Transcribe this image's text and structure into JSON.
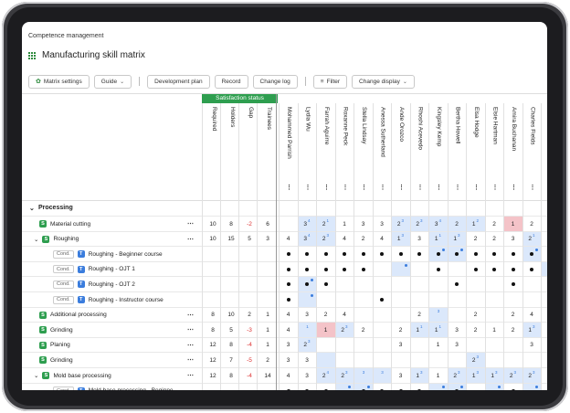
{
  "app": {
    "breadcrumb": "Competence management",
    "title": "Manufacturing skill matrix"
  },
  "toolbar": {
    "matrix_settings": "Matrix settings",
    "guide": "Guide",
    "development_plan": "Development plan",
    "record": "Record",
    "change_log": "Change log",
    "filter": "Filter",
    "change_display": "Change display"
  },
  "header": {
    "satisfaction_status": "Satisfaction status",
    "columns": [
      "Required",
      "Holders",
      "Gap",
      "Trainees"
    ],
    "people": [
      "Mohammed Parrish",
      "Lydia Wu",
      "Farrah Aguirre",
      "Roxanne Peck",
      "Stella Lindsay",
      "Anessa Sutherland",
      "Ande Orozco",
      "Rhoshi Acevedo",
      "Kingsley Kemp",
      "Bertha Howell",
      "Elsa Hodge",
      "Elsie Hartman",
      "Amira Buchanan",
      "Charles Fields",
      "Anabel Palmer"
    ]
  },
  "section": {
    "label": "Processing"
  },
  "rows": [
    {
      "kind": "S",
      "label": "Material cutting",
      "indent": 1,
      "stats": [
        "10",
        "8",
        "-2",
        "6"
      ]
    },
    {
      "kind": "S",
      "label": "Roughing",
      "indent": 1,
      "expand": true,
      "stats": [
        "10",
        "15",
        "5",
        "3"
      ]
    },
    {
      "kind": "T",
      "cond": "Cond.",
      "label": "Roughing - Beginner course",
      "indent": 2,
      "stats": [
        "",
        "",
        "",
        ""
      ]
    },
    {
      "kind": "T",
      "cond": "Cond.",
      "label": "Roughing - OJT 1",
      "indent": 2,
      "stats": [
        "",
        "",
        "",
        ""
      ]
    },
    {
      "kind": "T",
      "cond": "Cond.",
      "label": "Roughing - OJT 2",
      "indent": 2,
      "stats": [
        "",
        "",
        "",
        ""
      ]
    },
    {
      "kind": "T",
      "cond": "Cond.",
      "label": "Roughing - Instructor course",
      "indent": 2,
      "stats": [
        "",
        "",
        "",
        ""
      ]
    },
    {
      "kind": "S",
      "label": "Additional processing",
      "indent": 1,
      "stats": [
        "8",
        "10",
        "2",
        "1"
      ]
    },
    {
      "kind": "S",
      "label": "Grinding",
      "indent": 1,
      "stats": [
        "8",
        "5",
        "-3",
        "1"
      ]
    },
    {
      "kind": "S",
      "label": "Planing",
      "indent": 1,
      "stats": [
        "12",
        "8",
        "-4",
        "1"
      ]
    },
    {
      "kind": "S",
      "label": "Grinding",
      "indent": 1,
      "stats": [
        "12",
        "7",
        "-5",
        "2"
      ]
    },
    {
      "kind": "S",
      "label": "Mold base processing",
      "indent": 1,
      "expand": true,
      "stats": [
        "12",
        "8",
        "-4",
        "14"
      ]
    },
    {
      "kind": "T",
      "cond": "Cond.",
      "label": "Mold base processing - Beginne",
      "indent": 2,
      "stats": [
        "",
        "",
        "",
        ""
      ]
    },
    {
      "kind": "T",
      "cond": "Cond.",
      "label": "Mold base processing - OJT 1",
      "indent": 2,
      "stats": [
        "",
        "",
        "",
        ""
      ]
    }
  ],
  "cells": [
    [
      [
        "",
        ""
      ],
      [
        "3",
        "4",
        "hl"
      ],
      [
        "2",
        "1",
        "hl"
      ],
      [
        "1",
        ""
      ],
      [
        "3",
        ""
      ],
      [
        "3",
        ""
      ],
      [
        "2",
        "3",
        "hl"
      ],
      [
        "2",
        "3",
        "hl"
      ],
      [
        "3",
        "4",
        "hl"
      ],
      [
        "2",
        "",
        "hl"
      ],
      [
        "1",
        "2",
        "hl"
      ],
      [
        "2",
        ""
      ],
      [
        "1",
        "",
        "red"
      ],
      [
        "2",
        ""
      ],
      [
        "",
        ""
      ]
    ],
    [
      [
        "4",
        ""
      ],
      [
        "3",
        "4",
        "hl"
      ],
      [
        "2",
        "3",
        "hl"
      ],
      [
        "4",
        ""
      ],
      [
        "2",
        ""
      ],
      [
        "4",
        ""
      ],
      [
        "1",
        "3",
        "hl"
      ],
      [
        "3",
        ""
      ],
      [
        "1",
        "1",
        "hl"
      ],
      [
        "1",
        "3",
        "hl"
      ],
      [
        "2",
        ""
      ],
      [
        "2",
        ""
      ],
      [
        "3",
        ""
      ],
      [
        "2",
        "1",
        "hl"
      ],
      [
        "4",
        ""
      ]
    ],
    [
      [
        "●",
        ""
      ],
      [
        "●",
        ""
      ],
      [
        "●",
        ""
      ],
      [
        "●",
        ""
      ],
      [
        "●",
        ""
      ],
      [
        "●",
        ""
      ],
      [
        "●",
        ""
      ],
      [
        "●",
        ""
      ],
      [
        "●",
        "b",
        "hl"
      ],
      [
        "●",
        "b",
        "hl"
      ],
      [
        "●",
        ""
      ],
      [
        "●",
        ""
      ],
      [
        "●",
        ""
      ],
      [
        "●",
        "b",
        "hl"
      ],
      [
        "",
        ""
      ]
    ],
    [
      [
        "●",
        ""
      ],
      [
        "●",
        ""
      ],
      [
        "●",
        ""
      ],
      [
        "●",
        ""
      ],
      [
        "●",
        ""
      ],
      [
        "",
        ""
      ],
      [
        "",
        "b",
        "hl"
      ],
      [
        "",
        ""
      ],
      [
        "●",
        ""
      ],
      [
        "",
        ""
      ],
      [
        "●",
        ""
      ],
      [
        "●",
        ""
      ],
      [
        "●",
        ""
      ],
      [
        "●",
        ""
      ],
      [
        "",
        "b",
        "hl"
      ]
    ],
    [
      [
        "●",
        ""
      ],
      [
        "●",
        "b",
        "hl"
      ],
      [
        "●",
        ""
      ],
      [
        "",
        ""
      ],
      [
        "",
        ""
      ],
      [
        "",
        ""
      ],
      [
        "",
        ""
      ],
      [
        "",
        ""
      ],
      [
        "",
        ""
      ],
      [
        "●",
        ""
      ],
      [
        "",
        ""
      ],
      [
        "",
        ""
      ],
      [
        "●",
        ""
      ],
      [
        "",
        ""
      ],
      [
        "",
        ""
      ]
    ],
    [
      [
        "●",
        ""
      ],
      [
        "",
        "b",
        "hl"
      ],
      [
        "",
        ""
      ],
      [
        "",
        ""
      ],
      [
        "",
        ""
      ],
      [
        "●",
        ""
      ],
      [
        "",
        ""
      ],
      [
        "",
        ""
      ],
      [
        "",
        ""
      ],
      [
        "",
        ""
      ],
      [
        "",
        ""
      ],
      [
        "",
        ""
      ],
      [
        "",
        ""
      ],
      [
        "",
        ""
      ],
      [
        "●",
        ""
      ]
    ],
    [
      [
        "4",
        ""
      ],
      [
        "3",
        ""
      ],
      [
        "2",
        ""
      ],
      [
        "4",
        ""
      ],
      [
        "",
        ""
      ],
      [
        "",
        ""
      ],
      [
        "",
        ""
      ],
      [
        "2",
        ""
      ],
      [
        "",
        "3",
        "hl"
      ],
      [
        "",
        ""
      ],
      [
        "2",
        ""
      ],
      [
        "",
        ""
      ],
      [
        "2",
        ""
      ],
      [
        "4",
        ""
      ],
      [
        "",
        ""
      ]
    ],
    [
      [
        "4",
        ""
      ],
      [
        "",
        "1",
        "hl"
      ],
      [
        "1",
        "",
        "red"
      ],
      [
        "2",
        "3",
        "hl"
      ],
      [
        "2",
        ""
      ],
      [
        "",
        ""
      ],
      [
        "2",
        ""
      ],
      [
        "1",
        "1",
        "hl"
      ],
      [
        "1",
        "1",
        "hl"
      ],
      [
        "3",
        ""
      ],
      [
        "2",
        ""
      ],
      [
        "1",
        ""
      ],
      [
        "2",
        ""
      ],
      [
        "1",
        "3",
        "hl"
      ],
      [
        "",
        ""
      ]
    ],
    [
      [
        "3",
        ""
      ],
      [
        "2",
        "3",
        "hl"
      ],
      [
        "",
        ""
      ],
      [
        "",
        ""
      ],
      [
        "",
        ""
      ],
      [
        "",
        ""
      ],
      [
        "3",
        ""
      ],
      [
        "",
        ""
      ],
      [
        "1",
        ""
      ],
      [
        "3",
        ""
      ],
      [
        "",
        ""
      ],
      [
        "",
        ""
      ],
      [
        "",
        ""
      ],
      [
        "3",
        ""
      ],
      [
        "",
        ""
      ]
    ],
    [
      [
        "3",
        ""
      ],
      [
        "3",
        ""
      ],
      [
        "",
        "",
        "hl"
      ],
      [
        "",
        ""
      ],
      [
        "",
        ""
      ],
      [
        "",
        ""
      ],
      [
        "",
        ""
      ],
      [
        "",
        ""
      ],
      [
        "",
        ""
      ],
      [
        "",
        ""
      ],
      [
        "2",
        "3",
        "hl"
      ],
      [
        "",
        ""
      ],
      [
        "",
        ""
      ],
      [
        "",
        ""
      ],
      [
        "",
        ""
      ]
    ],
    [
      [
        "4",
        ""
      ],
      [
        "3",
        ""
      ],
      [
        "2",
        "4",
        "hl"
      ],
      [
        "2",
        "3",
        "hl"
      ],
      [
        "",
        "3",
        "hl"
      ],
      [
        "",
        "3",
        "hl"
      ],
      [
        "3",
        ""
      ],
      [
        "1",
        "3",
        "hl"
      ],
      [
        "1",
        ""
      ],
      [
        "2",
        "3",
        "hl"
      ],
      [
        "1",
        "3",
        "hl"
      ],
      [
        "1",
        "3",
        "hl"
      ],
      [
        "2",
        "3",
        "hl"
      ],
      [
        "2",
        "3",
        "hl"
      ],
      [
        "",
        ""
      ]
    ],
    [
      [
        "●",
        ""
      ],
      [
        "●",
        ""
      ],
      [
        "●",
        ""
      ],
      [
        "",
        "b",
        "hl"
      ],
      [
        "●",
        "b",
        "hl"
      ],
      [
        "●",
        ""
      ],
      [
        "●",
        ""
      ],
      [
        "●",
        ""
      ],
      [
        "",
        "b",
        "hl"
      ],
      [
        "●",
        "b",
        "hl"
      ],
      [
        "",
        ""
      ],
      [
        "",
        "b",
        "hl"
      ],
      [
        "●",
        ""
      ],
      [
        "",
        "b",
        "hl"
      ],
      [
        "",
        ""
      ]
    ],
    [
      [
        "●",
        ""
      ],
      [
        "●",
        ""
      ],
      [
        "●",
        "b",
        "hl"
      ],
      [
        "",
        ""
      ],
      [
        "●",
        ""
      ],
      [
        "●",
        "b",
        "hl"
      ],
      [
        "",
        ""
      ],
      [
        "",
        ""
      ],
      [
        "●",
        "b",
        "hl"
      ],
      [
        "",
        "b",
        "hl"
      ],
      [
        "●",
        "b",
        "hl"
      ],
      [
        "",
        ""
      ],
      [
        "●",
        "b",
        "hl"
      ],
      [
        "●",
        ""
      ],
      [
        "",
        "b",
        "hl"
      ]
    ]
  ],
  "colors": {
    "accent": "#2e9e4f",
    "skill_badge": "#2e9e4f",
    "training_badge": "#3b7ddd",
    "gap_negative": "#dd3333",
    "highlight": "#dbe8fb",
    "alert": "#f4c3c8"
  }
}
